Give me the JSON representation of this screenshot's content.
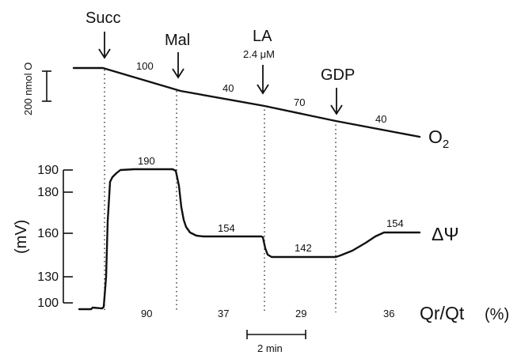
{
  "chart_data": {
    "type": "line",
    "events": [
      {
        "label": "Succ",
        "sub": ""
      },
      {
        "label": "Mal",
        "sub": ""
      },
      {
        "label": "LA",
        "sub": "2.4 μM"
      },
      {
        "label": "GDP",
        "sub": ""
      }
    ],
    "o2": {
      "name": "O2",
      "rates": [
        "100",
        "40",
        "70",
        "40"
      ],
      "scale_bar_label": "200 nmol O"
    },
    "membrane_potential": {
      "name": "ΔΨ",
      "ylabel": "(mV)",
      "ticks": [
        100,
        130,
        160,
        180,
        190
      ],
      "ylim": [
        100,
        190
      ],
      "plateaus": [
        {
          "value": 190,
          "label": "190"
        },
        {
          "value": 154,
          "label": "154"
        },
        {
          "value": 142,
          "label": "142"
        },
        {
          "value": 154,
          "label": "154"
        }
      ]
    },
    "qr_qt": {
      "label": "Qr/Qt",
      "unit": "(%)",
      "values": [
        "90",
        "37",
        "29",
        "36"
      ]
    },
    "time_scale_label": "2 min"
  },
  "colors": {
    "ink": "#111111",
    "background": "#ffffff"
  }
}
